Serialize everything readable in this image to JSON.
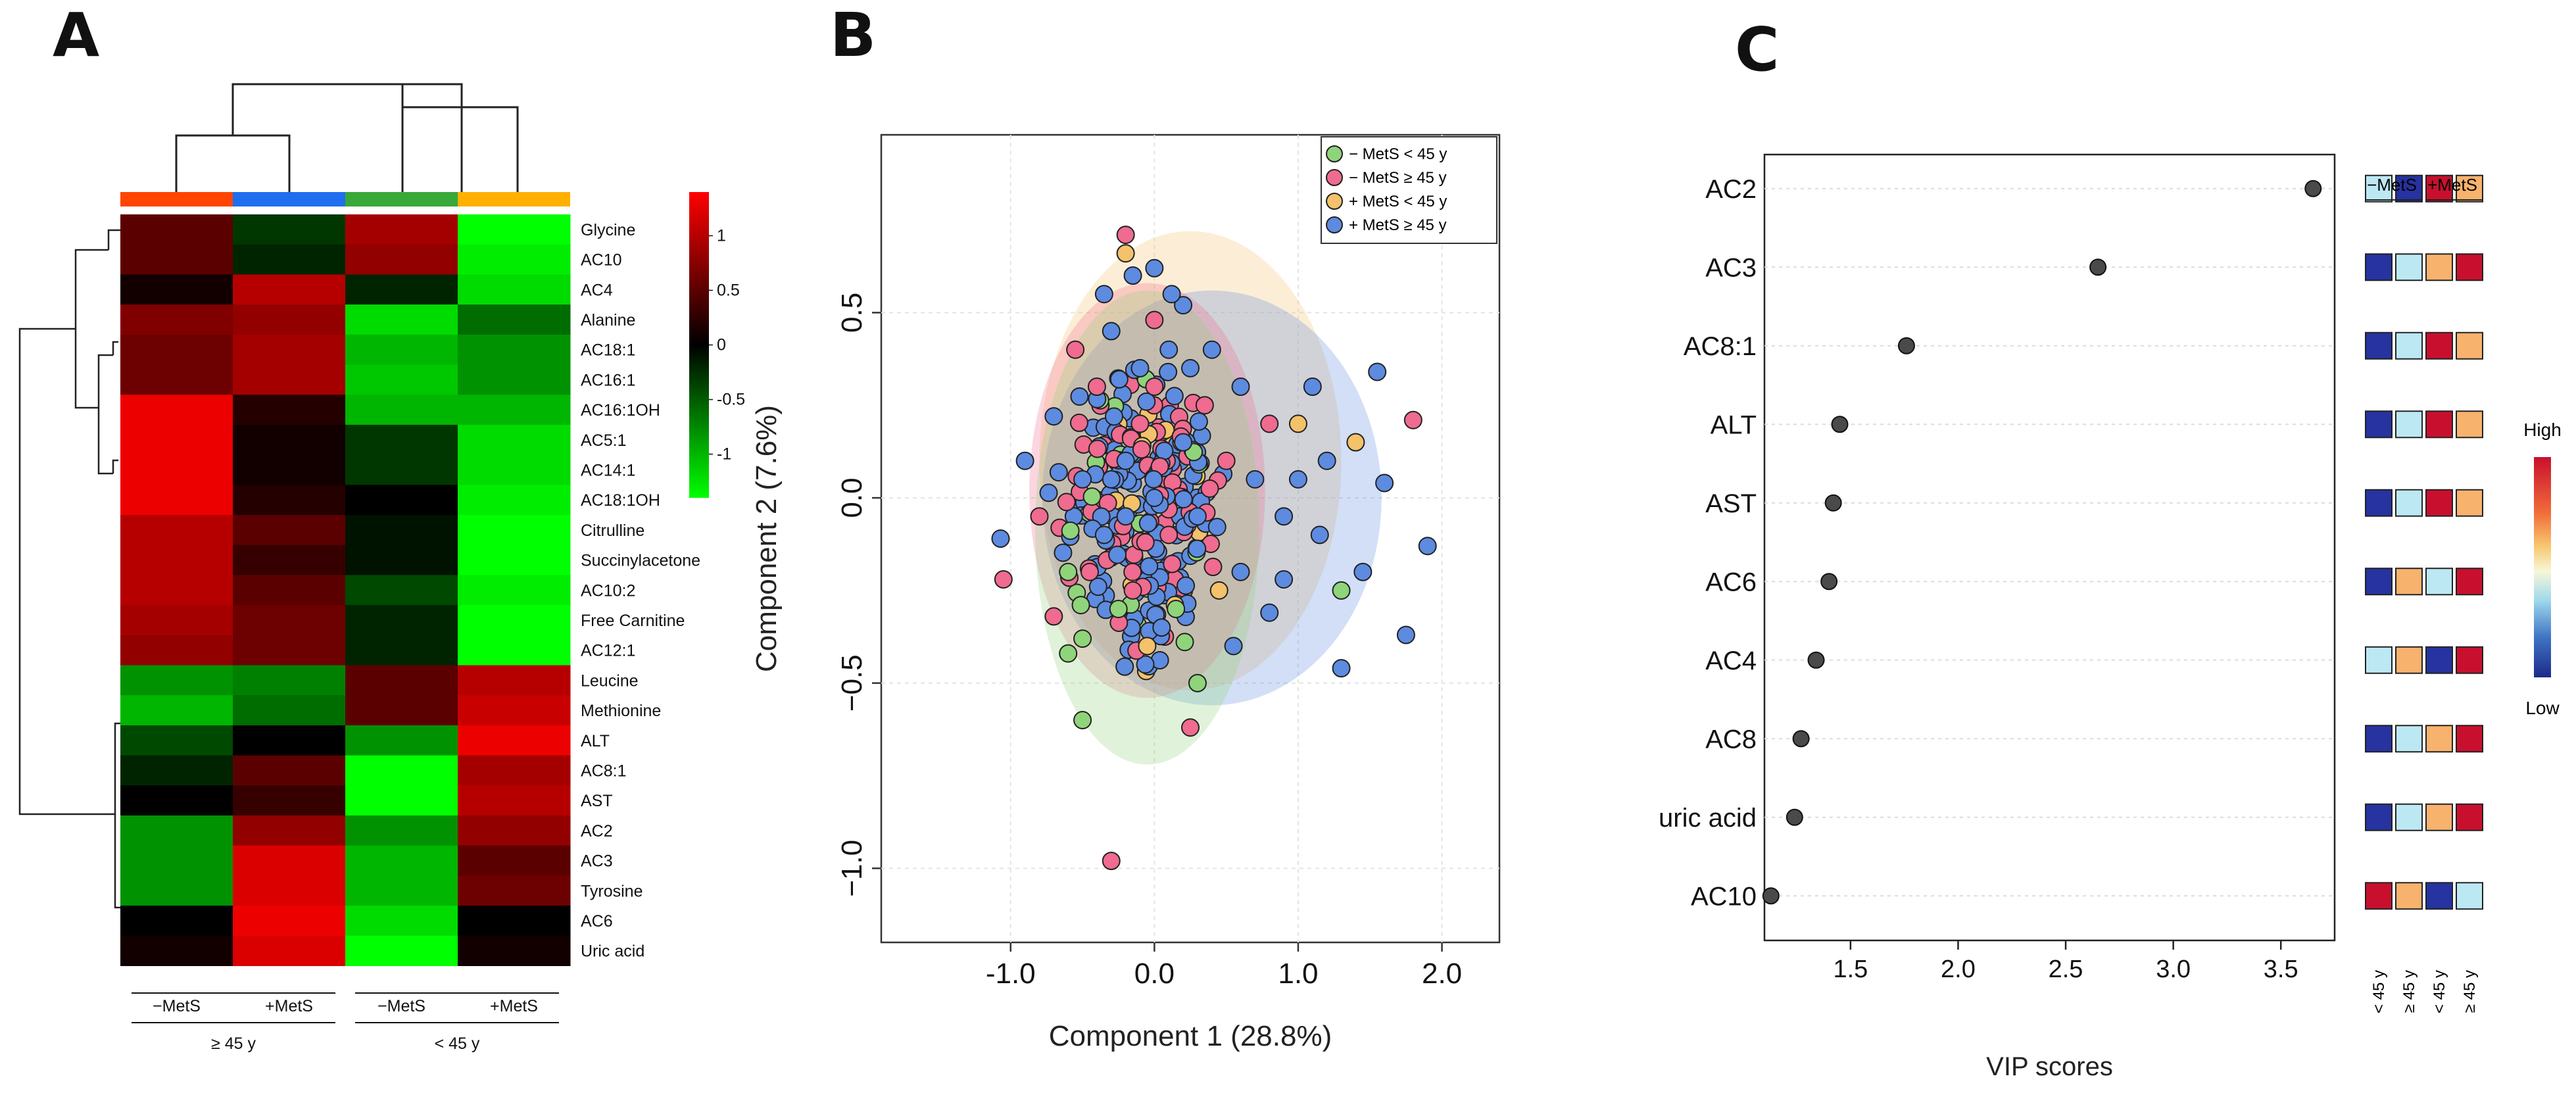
{
  "panels": {
    "a": "A",
    "b": "B",
    "c": "C"
  },
  "chart_data": [
    {
      "type": "heatmap",
      "panel": "A",
      "columns": [
        "−MetS ≥ 45 y",
        "+MetS ≥ 45 y",
        "−MetS < 45 y",
        "+MetS < 45 y"
      ],
      "column_colors": [
        "#ff4500",
        "#1e6ef0",
        "#38a838",
        "#ffb000"
      ],
      "bottom_labels": [
        "−MetS",
        "+MetS",
        "−MetS",
        "+MetS"
      ],
      "group_labels": [
        "≥ 45 y",
        "< 45 y"
      ],
      "rows": [
        "Glycine",
        "AC10",
        "AC4",
        "Alanine",
        "AC18:1",
        "AC16:1",
        "AC16:1OH",
        "AC5:1",
        "AC14:1",
        "AC18:1OH",
        "Citrulline",
        "Succinylacetone",
        "AC10:2",
        "Free Carnitine",
        "AC12:1",
        "Leucine",
        "Methionine",
        "ALT",
        "AC8:1",
        "AST",
        "AC2",
        "AC3",
        "Tyrosine",
        "AC6",
        "Uric acid"
      ],
      "values": [
        [
          0.5,
          -0.3,
          0.9,
          -1.4
        ],
        [
          0.5,
          -0.2,
          0.8,
          -1.3
        ],
        [
          0.1,
          1.0,
          -0.2,
          -1.2
        ],
        [
          0.7,
          0.8,
          -1.2,
          -0.6
        ],
        [
          0.6,
          0.9,
          -1.0,
          -0.8
        ],
        [
          0.6,
          0.9,
          -1.1,
          -0.8
        ],
        [
          1.3,
          0.2,
          -1.0,
          -1.0
        ],
        [
          1.3,
          0.1,
          -0.3,
          -1.2
        ],
        [
          1.3,
          0.1,
          -0.3,
          -1.2
        ],
        [
          1.3,
          0.2,
          0.0,
          -1.3
        ],
        [
          1.0,
          0.5,
          -0.1,
          -1.4
        ],
        [
          1.0,
          0.3,
          -0.1,
          -1.4
        ],
        [
          1.0,
          0.5,
          -0.4,
          -1.3
        ],
        [
          0.9,
          0.6,
          -0.2,
          -1.4
        ],
        [
          0.8,
          0.6,
          -0.2,
          -1.4
        ],
        [
          -0.8,
          -0.7,
          0.5,
          1.0
        ],
        [
          -1.0,
          -0.6,
          0.5,
          1.1
        ],
        [
          -0.4,
          0.0,
          -0.8,
          1.3
        ],
        [
          -0.2,
          0.5,
          -1.4,
          0.9
        ],
        [
          0.0,
          0.3,
          -1.4,
          1.0
        ],
        [
          -0.8,
          0.8,
          -0.8,
          0.8
        ],
        [
          -0.8,
          1.2,
          -1.0,
          0.5
        ],
        [
          -0.8,
          1.2,
          -1.0,
          0.6
        ],
        [
          0.0,
          1.3,
          -1.2,
          0.0
        ],
        [
          0.1,
          1.2,
          -1.4,
          0.1
        ]
      ],
      "color_scale": {
        "ticks": [
          1,
          0.5,
          0,
          -0.5,
          -1
        ],
        "tick_labels": [
          "1",
          "0.5",
          "0",
          "-0.5",
          "-1"
        ],
        "low": "#00ff00",
        "mid": "#000000",
        "high": "#ff0000"
      }
    },
    {
      "type": "scatter",
      "panel": "B",
      "xlabel": "Component 1 (28.8%)",
      "ylabel": "Component 2 (7.6%)",
      "xlim": [
        -1.9,
        2.4
      ],
      "ylim": [
        -1.2,
        0.98
      ],
      "xticks": [
        -1.0,
        0.0,
        1.0,
        2.0
      ],
      "xtick_labels": [
        "-1.0",
        "0.0",
        "1.0",
        "2.0"
      ],
      "yticks": [
        0.5,
        0.0,
        -0.5,
        -1.0
      ],
      "ytick_labels": [
        "0.5",
        "0.0",
        "−0.5",
        "−1.0"
      ],
      "legend_position": "top-right",
      "series": [
        {
          "name": "− MetS  < 45 y",
          "color": "#8fd47a",
          "ellipse": {
            "cx": -0.05,
            "cy": -0.08,
            "rx": 0.78,
            "ry": 0.64,
            "angle": 0
          }
        },
        {
          "name": "− MetS  ≥ 45 y",
          "color": "#ef6b8f",
          "ellipse": {
            "cx": -0.05,
            "cy": 0.02,
            "rx": 0.82,
            "ry": 0.56,
            "angle": 0
          }
        },
        {
          "name": "+ MetS < 45 y",
          "color": "#f3c26a",
          "ellipse": {
            "cx": 0.25,
            "cy": 0.1,
            "rx": 1.05,
            "ry": 0.62,
            "angle": 0
          }
        },
        {
          "name": "+ MetS ≥ 45 y",
          "color": "#5d8be0",
          "ellipse": {
            "cx": 0.4,
            "cy": 0.0,
            "rx": 1.18,
            "ry": 0.56,
            "angle": 0
          }
        }
      ],
      "sample_points": [
        [
          -0.3,
          -0.98,
          1
        ],
        [
          -0.2,
          0.71,
          1
        ],
        [
          -0.2,
          0.66,
          2
        ],
        [
          0.0,
          0.62,
          3
        ],
        [
          -0.5,
          -0.6,
          0
        ],
        [
          0.25,
          -0.62,
          1
        ],
        [
          1.3,
          -0.46,
          3
        ],
        [
          1.75,
          -0.37,
          3
        ],
        [
          1.9,
          -0.13,
          3
        ],
        [
          1.8,
          0.21,
          1
        ],
        [
          1.6,
          0.04,
          3
        ],
        [
          1.55,
          0.34,
          3
        ],
        [
          -1.07,
          -0.11,
          3
        ],
        [
          -1.05,
          -0.22,
          1
        ],
        [
          0.3,
          -0.5,
          0
        ],
        [
          -0.5,
          -0.38,
          0
        ],
        [
          -0.6,
          -0.42,
          0
        ],
        [
          0.8,
          -0.31,
          3
        ],
        [
          0.6,
          -0.2,
          3
        ],
        [
          1.0,
          0.2,
          2
        ],
        [
          1.1,
          0.3,
          3
        ],
        [
          0.4,
          0.4,
          3
        ],
        [
          0.2,
          0.52,
          3
        ],
        [
          0.0,
          0.48,
          1
        ],
        [
          -0.3,
          0.45,
          3
        ],
        [
          0.5,
          0.1,
          1
        ],
        [
          0.7,
          0.05,
          3
        ],
        [
          0.9,
          -0.05,
          3
        ],
        [
          1.2,
          0.1,
          3
        ],
        [
          1.4,
          0.15,
          2
        ],
        [
          1.45,
          -0.2,
          3
        ],
        [
          1.3,
          -0.25,
          0
        ],
        [
          -0.9,
          0.1,
          3
        ],
        [
          -0.8,
          -0.05,
          1
        ],
        [
          -0.7,
          0.22,
          3
        ],
        [
          -0.6,
          -0.2,
          0
        ],
        [
          -0.4,
          0.3,
          1
        ],
        [
          -0.35,
          -0.1,
          3
        ],
        [
          -0.2,
          0.1,
          3
        ],
        [
          -0.1,
          0.2,
          1
        ],
        [
          0.0,
          0.0,
          3
        ],
        [
          0.1,
          -0.1,
          1
        ],
        [
          0.2,
          0.15,
          3
        ],
        [
          0.3,
          -0.05,
          3
        ],
        [
          0.35,
          0.25,
          1
        ],
        [
          0.45,
          -0.25,
          2
        ],
        [
          -0.25,
          -0.3,
          0
        ],
        [
          -0.15,
          -0.25,
          1
        ],
        [
          -0.05,
          -0.4,
          2
        ],
        [
          0.05,
          -0.35,
          3
        ],
        [
          0.15,
          -0.3,
          0
        ],
        [
          -0.5,
          0.05,
          3
        ],
        [
          -0.45,
          -0.2,
          1
        ],
        [
          -0.3,
          0.05,
          3
        ],
        [
          -0.2,
          -0.05,
          3
        ],
        [
          -0.1,
          0.35,
          3
        ],
        [
          0.0,
          0.3,
          1
        ],
        [
          0.1,
          0.4,
          3
        ],
        [
          0.25,
          0.35,
          3
        ],
        [
          0.6,
          0.3,
          3
        ],
        [
          0.8,
          0.2,
          1
        ],
        [
          1.0,
          0.05,
          3
        ],
        [
          1.15,
          -0.1,
          3
        ],
        [
          0.9,
          -0.22,
          3
        ],
        [
          -0.7,
          -0.32,
          1
        ],
        [
          -0.55,
          0.4,
          1
        ],
        [
          -0.35,
          0.55,
          3
        ],
        [
          -0.15,
          0.6,
          3
        ],
        [
          0.12,
          0.55,
          3
        ],
        [
          0.55,
          -0.4,
          3
        ]
      ]
    },
    {
      "type": "scatter",
      "panel": "C",
      "xlabel": "VIP scores",
      "ylabel": "",
      "xlim": [
        1.1,
        3.75
      ],
      "xticks": [
        1.5,
        2.0,
        2.5,
        3.0,
        3.5
      ],
      "xtick_labels": [
        "1.5",
        "2.0",
        "2.5",
        "3.0",
        "3.5"
      ],
      "categories": [
        "AC2",
        "AC3",
        "AC8:1",
        "ALT",
        "AST",
        "AC6",
        "AC4",
        "AC8",
        "uric acid",
        "AC10"
      ],
      "values": [
        3.65,
        2.65,
        1.76,
        1.45,
        1.42,
        1.4,
        1.34,
        1.27,
        1.24,
        1.13
      ],
      "group_header": [
        "−MetS",
        "+MetS"
      ],
      "group_columns": [
        "< 45 y",
        "≥ 45 y",
        "< 45 y",
        "≥ 45 y"
      ],
      "level_grid": [
        [
          2,
          1,
          4,
          3
        ],
        [
          1,
          2,
          3,
          4
        ],
        [
          1,
          2,
          4,
          3
        ],
        [
          1,
          2,
          4,
          3
        ],
        [
          1,
          2,
          4,
          3
        ],
        [
          1,
          3,
          2,
          4
        ],
        [
          2,
          3,
          1,
          4
        ],
        [
          1,
          2,
          3,
          4
        ],
        [
          1,
          2,
          3,
          4
        ],
        [
          4,
          3,
          1,
          2
        ]
      ],
      "level_colors": [
        "#2633a0",
        "#bce8f3",
        "#f7b26d",
        "#c8102e"
      ],
      "color_scale": {
        "high": "High",
        "low": "Low"
      }
    }
  ]
}
